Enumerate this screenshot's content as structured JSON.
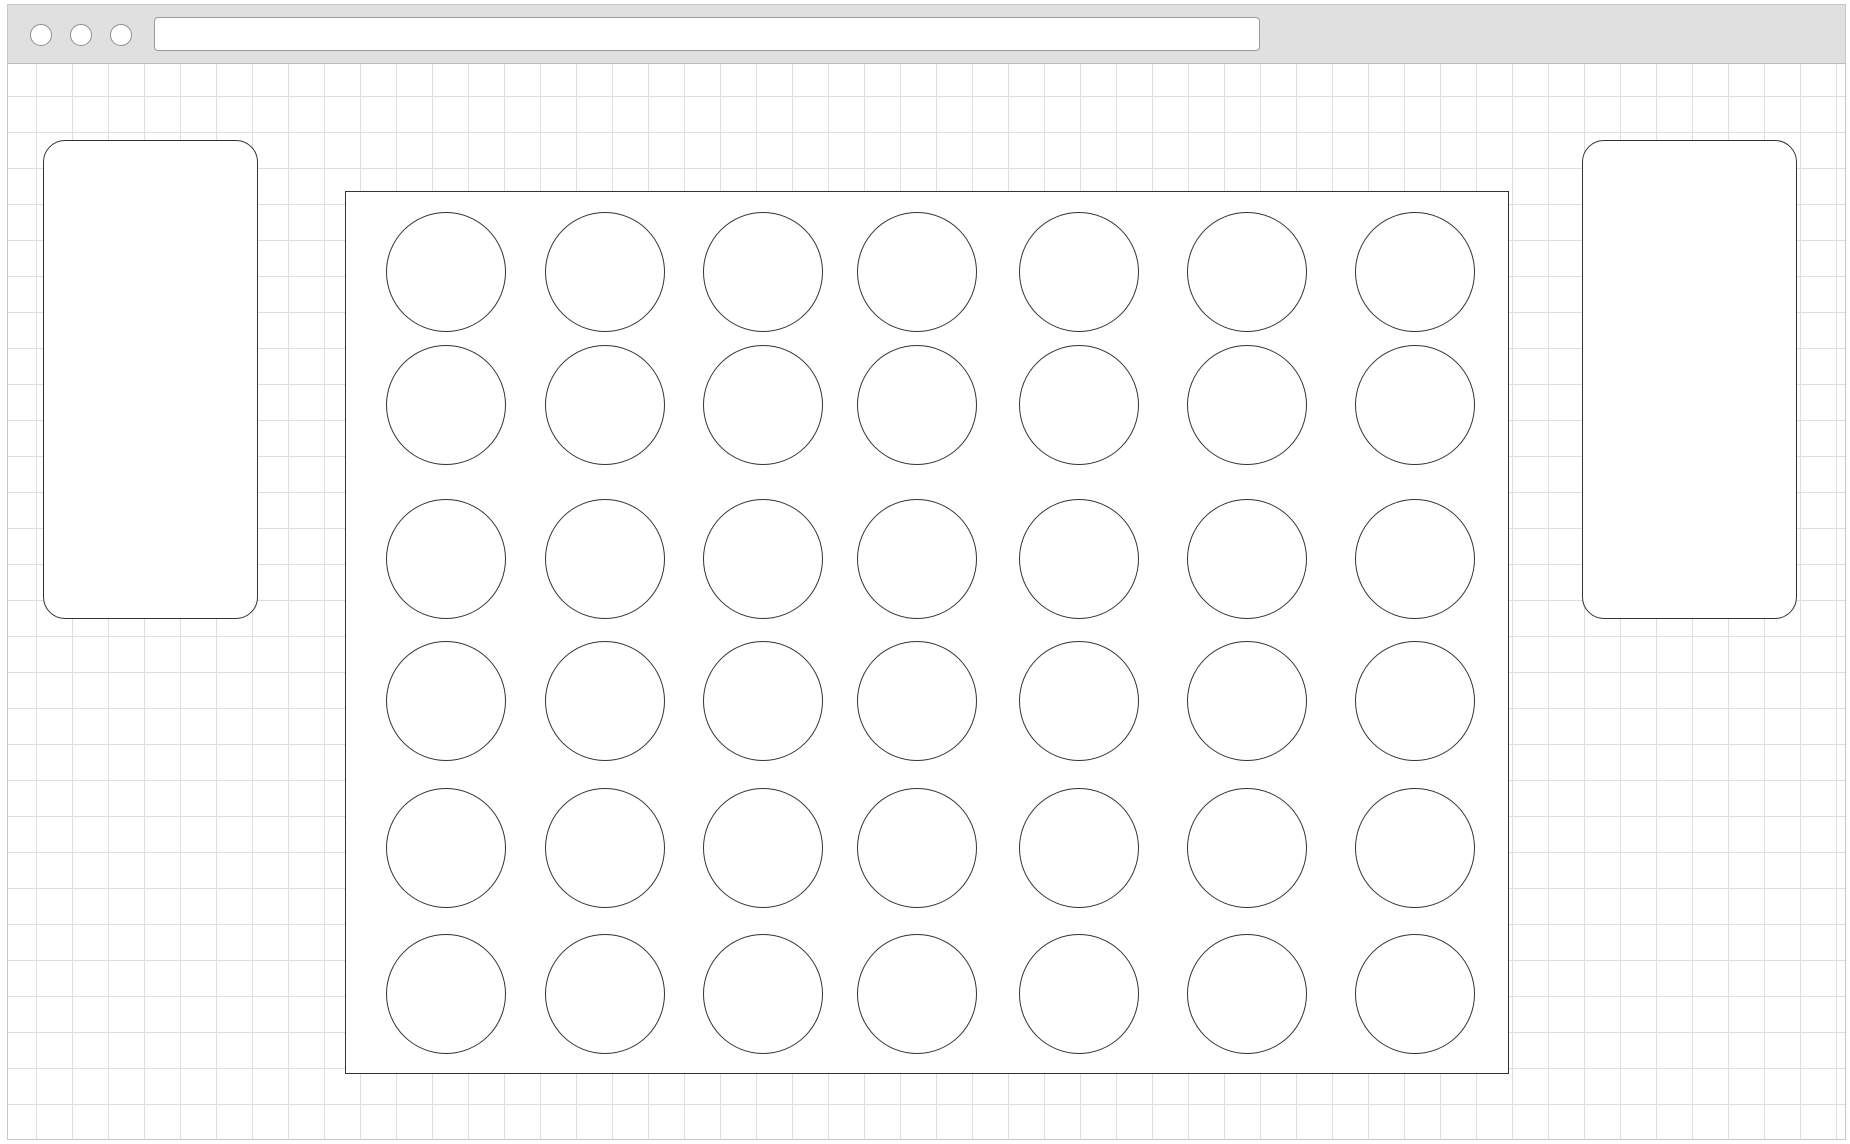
{
  "address_bar": {
    "url": ""
  },
  "window_controls": [
    "window-button-1",
    "window-button-2",
    "window-button-3"
  ],
  "side_panels": {
    "left": {
      "content": ""
    },
    "right": {
      "content": ""
    }
  },
  "board": {
    "rows": 6,
    "columns": 7,
    "slots": [
      [
        "",
        "",
        "",
        "",
        "",
        "",
        ""
      ],
      [
        "",
        "",
        "",
        "",
        "",
        "",
        ""
      ],
      [
        "",
        "",
        "",
        "",
        "",
        "",
        ""
      ],
      [
        "",
        "",
        "",
        "",
        "",
        "",
        ""
      ],
      [
        "",
        "",
        "",
        "",
        "",
        "",
        ""
      ],
      [
        "",
        "",
        "",
        "",
        "",
        "",
        ""
      ]
    ]
  },
  "colors": {
    "titlebar": "#e0e0e0",
    "grid_line": "#dedede",
    "outline": "#333333",
    "background": "#ffffff"
  }
}
